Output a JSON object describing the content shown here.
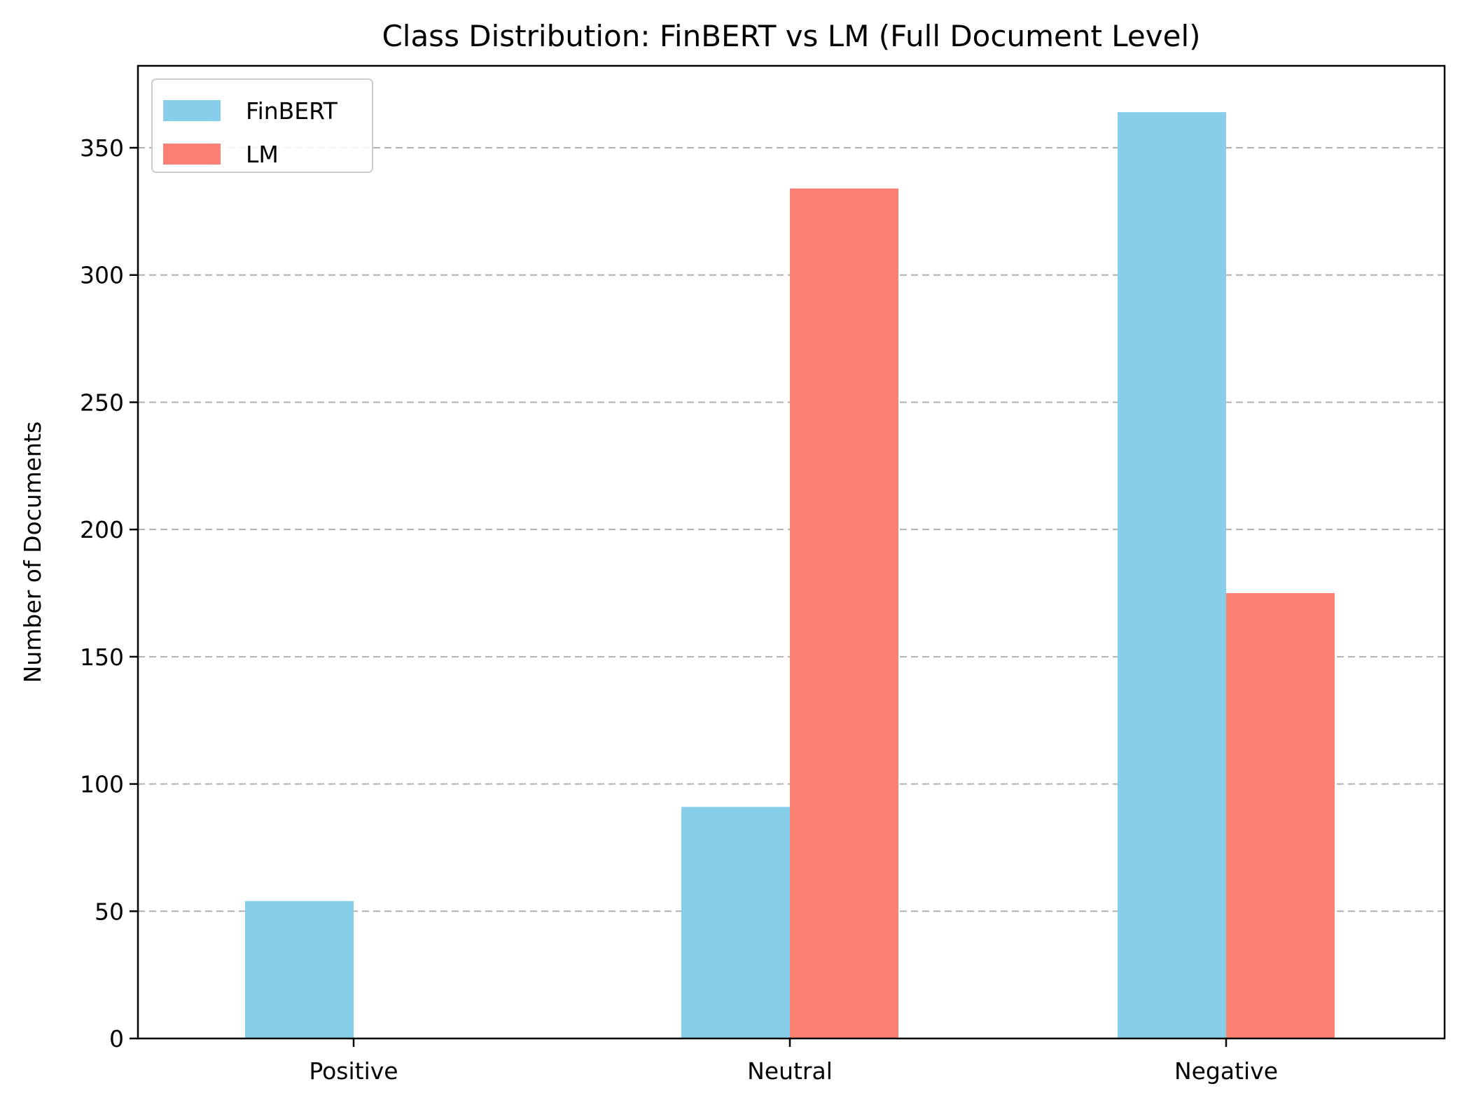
{
  "chart_data": {
    "type": "bar",
    "title": "Class Distribution: FinBERT vs LM (Full Document Level)",
    "xlabel": "",
    "ylabel": "Number of Documents",
    "categories": [
      "Positive",
      "Neutral",
      "Negative"
    ],
    "series": [
      {
        "name": "FinBERT",
        "color": "#87CEEB",
        "values": [
          54,
          91,
          364
        ]
      },
      {
        "name": "LM",
        "color": "#FA8072",
        "values": [
          0,
          334,
          175
        ]
      }
    ],
    "ylim": [
      0,
      382.2
    ],
    "yticks": [
      0,
      50,
      100,
      150,
      200,
      250,
      300,
      350
    ],
    "grid": "y-dashed",
    "legend": "top-left"
  }
}
